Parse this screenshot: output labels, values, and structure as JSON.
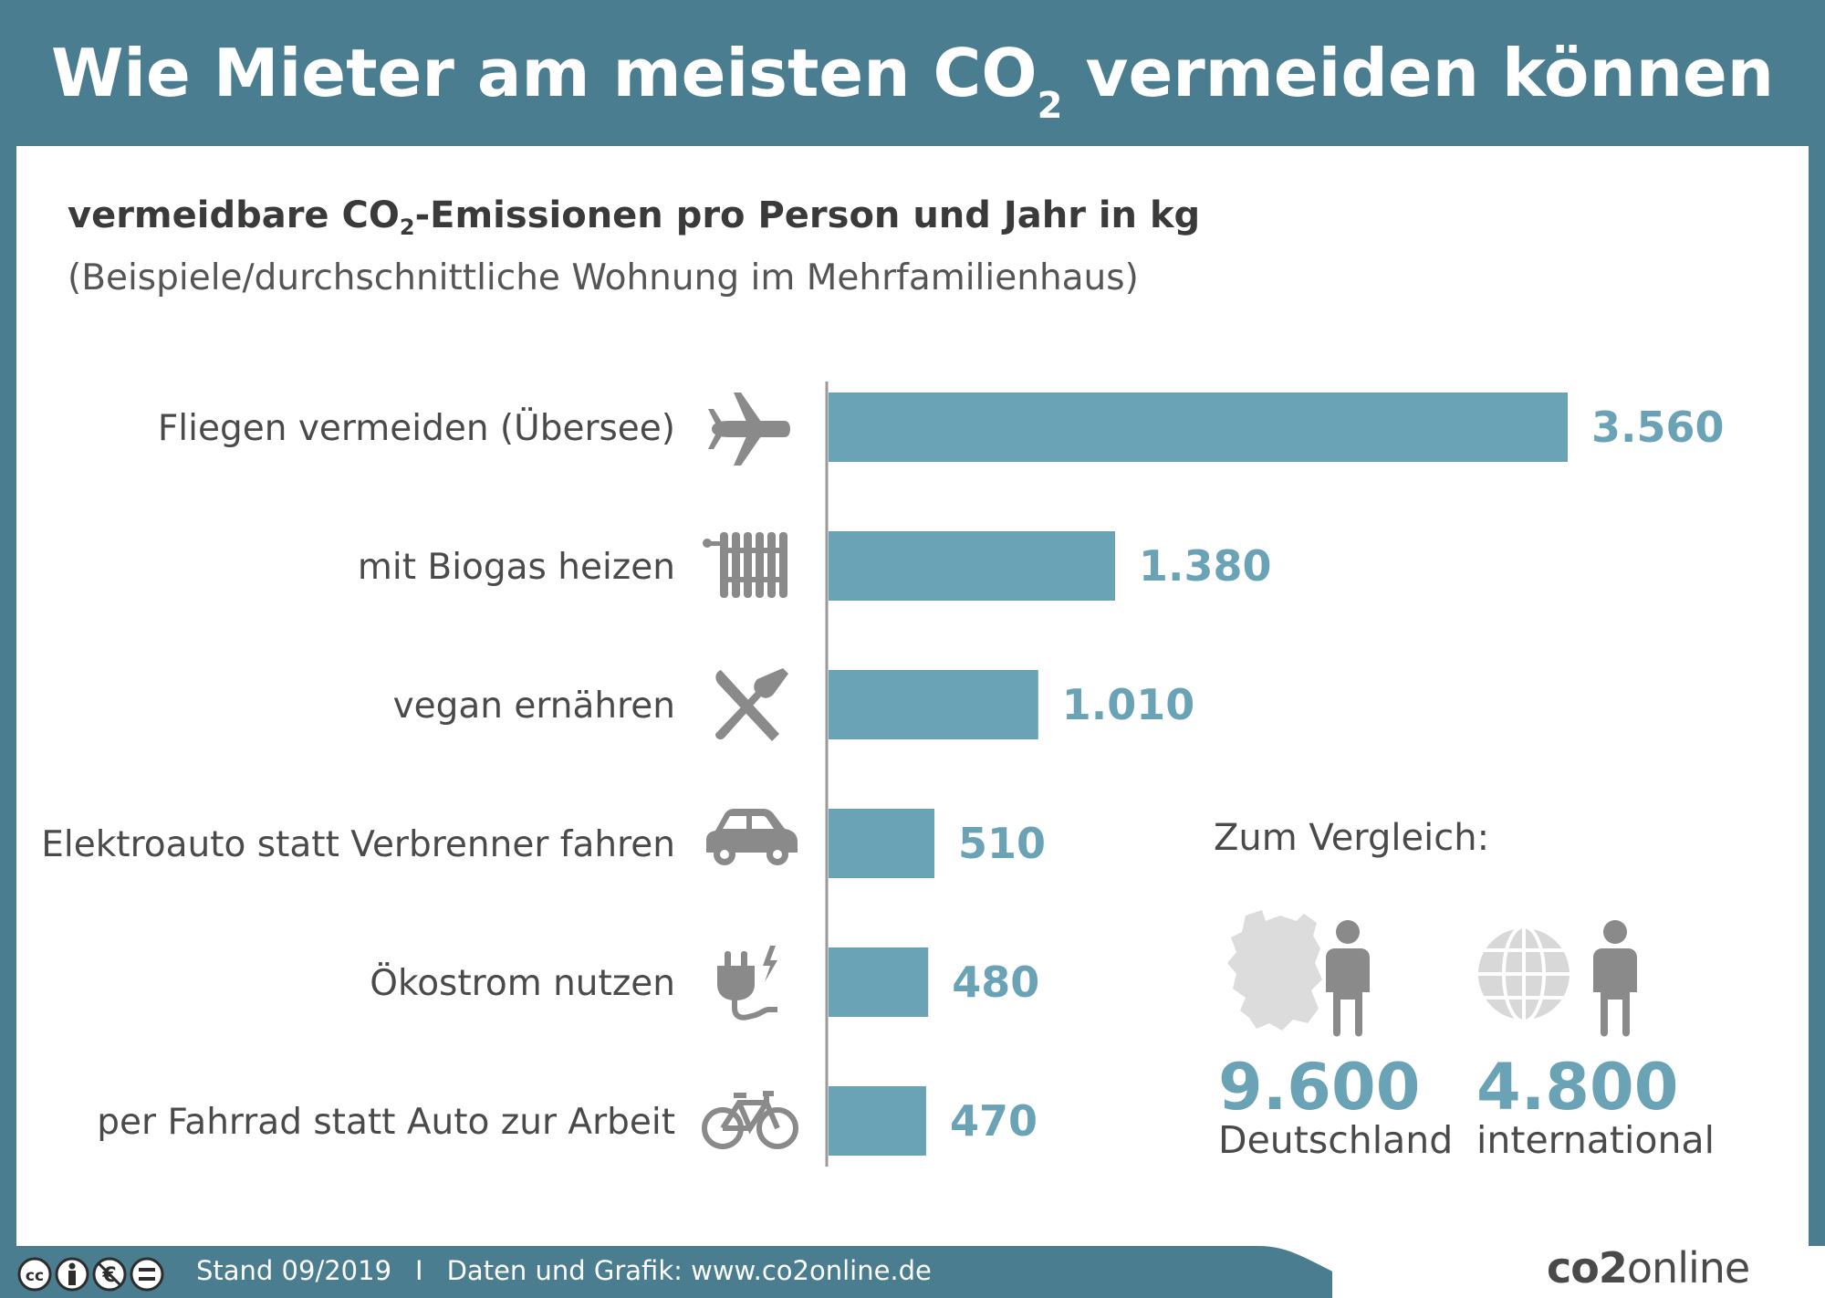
{
  "header": {
    "title_pre": "Wie Mieter am meisten CO",
    "title_sub": "2",
    "title_post": " vermeiden können"
  },
  "subtitle": {
    "pre": "vermeidbare CO",
    "sub": "2",
    "post": "-Emissionen pro Person und Jahr in kg",
    "note": "(Beispiele/durchschnittliche Wohnung im Mehrfamilienhaus)"
  },
  "chart_data": {
    "type": "bar",
    "orientation": "horizontal",
    "categories": [
      "Fliegen vermeiden (Übersee)",
      "mit Biogas heizen",
      "vegan ernähren",
      "Elektroauto statt Verbrenner fahren",
      "Ökostrom nutzen",
      "per Fahrrad statt Auto zur Arbeit"
    ],
    "values": [
      3560,
      1380,
      1010,
      510,
      480,
      470
    ],
    "value_labels": [
      "3.560",
      "1.380",
      "1.010",
      "510",
      "480",
      "470"
    ],
    "icons": [
      "airplane-icon",
      "radiator-icon",
      "cutlery-icon",
      "car-icon",
      "plug-icon",
      "bicycle-icon"
    ],
    "xlim": [
      0,
      3560
    ],
    "bar_color": "#6aa3b5",
    "grid": false
  },
  "comparison": {
    "title": "Zum Vergleich:",
    "items": [
      {
        "value": "9.600",
        "label": "Deutschland",
        "icon": "germany-map-icon"
      },
      {
        "value": "4.800",
        "label": "international",
        "icon": "globe-icon"
      }
    ]
  },
  "footer": {
    "date": "Stand 09/2019",
    "separator": "I",
    "credit": "Daten und Grafik: www.co2online.de",
    "brand_pre": "co",
    "brand_mid": "2",
    "brand_post": "online"
  },
  "colors": {
    "frame": "#4a7d8f",
    "bar": "#6aa3b5",
    "icon": "#8a8a8a"
  }
}
